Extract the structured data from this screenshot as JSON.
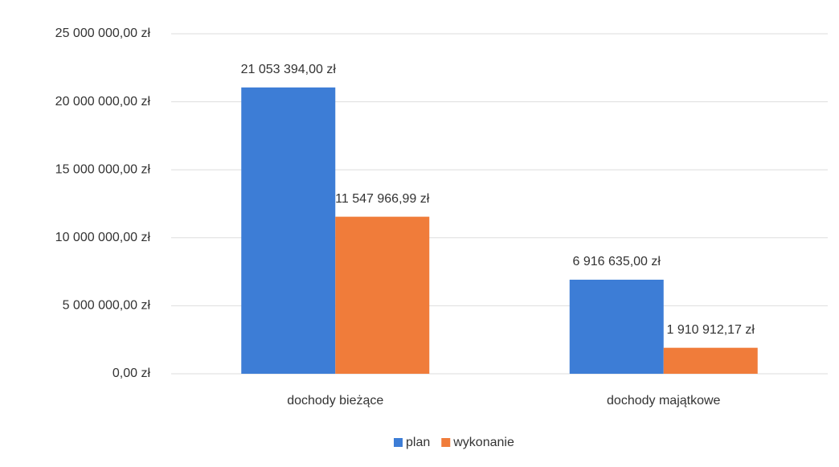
{
  "chart_data": {
    "type": "bar",
    "categories": [
      "dochody bieżące",
      "dochody majątkowe"
    ],
    "series": [
      {
        "name": "plan",
        "color": "#3d7dd6",
        "values": [
          21053394,
          6916635
        ],
        "value_labels": [
          "21 053 394,00 zł",
          "6 916 635,00 zł"
        ]
      },
      {
        "name": "wykonanie",
        "color": "#f07c3a",
        "values": [
          11547966.99,
          1910912.17
        ],
        "value_labels": [
          "11 547 966,99 zł",
          "1 910 912,17 zł"
        ]
      }
    ],
    "ylim": [
      0,
      25000000
    ],
    "yticks": [
      {
        "value": 0,
        "label": "0,00 zł"
      },
      {
        "value": 5000000,
        "label": "5 000 000,00 zł"
      },
      {
        "value": 10000000,
        "label": "10 000 000,00 zł"
      },
      {
        "value": 15000000,
        "label": "15 000 000,00 zł"
      },
      {
        "value": 20000000,
        "label": "20 000 000,00 zł"
      },
      {
        "value": 25000000,
        "label": "25 000 000,00 zł"
      }
    ],
    "grid": true,
    "legend": "bottom"
  }
}
